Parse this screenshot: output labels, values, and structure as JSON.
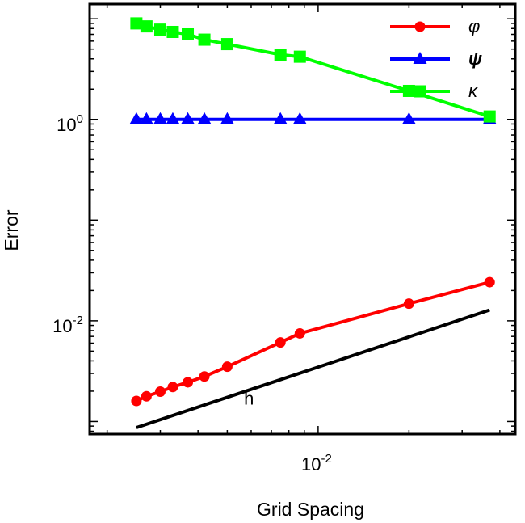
{
  "chart_data": {
    "type": "line",
    "xscale": "log",
    "yscale": "log",
    "xlabel": "Grid Spacing",
    "ylabel": "Error",
    "xlim": [
      0.00175,
      0.045
    ],
    "ylim": [
      0.00075,
      14
    ],
    "x_ticks": [
      {
        "value": 0.01,
        "base": "10",
        "exp": "-2"
      }
    ],
    "y_ticks": [
      {
        "value": 1,
        "base": "10",
        "exp": "0"
      },
      {
        "value": 0.01,
        "base": "10",
        "exp": "-2"
      }
    ],
    "legend_position": "top-right",
    "series": [
      {
        "name": "φ",
        "color": "#ff0000",
        "marker": "circle",
        "x": [
          0.0025,
          0.0027,
          0.003,
          0.0033,
          0.0037,
          0.0042,
          0.005,
          0.0075,
          0.0087,
          0.02,
          0.037
        ],
        "y": [
          0.0016,
          0.00178,
          0.00198,
          0.0022,
          0.00245,
          0.0028,
          0.0035,
          0.0061,
          0.0075,
          0.0148,
          0.0242
        ]
      },
      {
        "name": "ψ",
        "color": "#0000ff",
        "marker": "triangle",
        "x": [
          0.0025,
          0.0027,
          0.003,
          0.0033,
          0.0037,
          0.0042,
          0.005,
          0.0075,
          0.0087,
          0.02,
          0.037
        ],
        "y": [
          1,
          1,
          1,
          1,
          1,
          1,
          1,
          1,
          1,
          1,
          1
        ]
      },
      {
        "name": "κ",
        "color": "#00ff00",
        "marker": "square",
        "x": [
          0.0025,
          0.0027,
          0.003,
          0.0033,
          0.0037,
          0.0042,
          0.005,
          0.0075,
          0.0087,
          0.02,
          0.037
        ],
        "y": [
          9.0,
          8.4,
          7.8,
          7.4,
          7.0,
          6.2,
          5.6,
          4.4,
          4.2,
          1.92,
          1.07
        ]
      },
      {
        "name": "h",
        "color": "#000000",
        "marker": "none",
        "x": [
          0.0025,
          0.037
        ],
        "y": [
          0.00087,
          0.0128
        ]
      }
    ],
    "annotations": [
      {
        "text": "h",
        "x": 0.0059,
        "y": 0.0017
      }
    ]
  }
}
